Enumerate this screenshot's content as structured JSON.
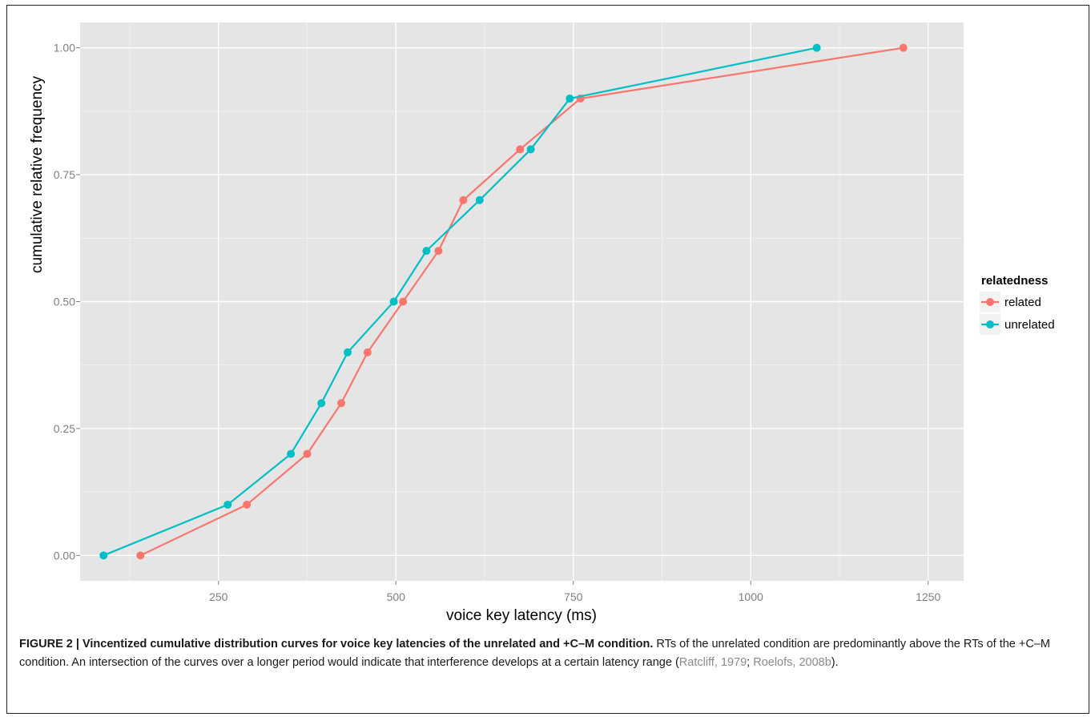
{
  "chart_data": {
    "type": "line",
    "xlabel": "voice key latency (ms)",
    "ylabel": "cumulative relative frequency",
    "xlim": [
      55,
      1300
    ],
    "ylim": [
      -0.05,
      1.05
    ],
    "x_ticks": [
      250,
      500,
      750,
      1000,
      1250
    ],
    "x_tick_labels": [
      "250",
      "500",
      "750",
      "1000",
      "1250"
    ],
    "y_ticks": [
      0,
      0.25,
      0.5,
      0.75,
      1.0
    ],
    "y_tick_labels": [
      "0.00",
      "0.25",
      "0.50",
      "0.75",
      "1.00"
    ],
    "grid": true,
    "legend_position": "right",
    "legend_title": "relatedness",
    "series": [
      {
        "name": "related",
        "color": "#F8766D",
        "points": [
          {
            "x": 140,
            "y": 0.0
          },
          {
            "x": 290,
            "y": 0.1
          },
          {
            "x": 375,
            "y": 0.2
          },
          {
            "x": 423,
            "y": 0.3
          },
          {
            "x": 460,
            "y": 0.4
          },
          {
            "x": 510,
            "y": 0.5
          },
          {
            "x": 560,
            "y": 0.6
          },
          {
            "x": 595,
            "y": 0.7
          },
          {
            "x": 675,
            "y": 0.8
          },
          {
            "x": 760,
            "y": 0.9
          },
          {
            "x": 1215,
            "y": 1.0
          }
        ]
      },
      {
        "name": "unrelated",
        "color": "#00BFC4",
        "points": [
          {
            "x": 88,
            "y": 0.0
          },
          {
            "x": 263,
            "y": 0.1
          },
          {
            "x": 352,
            "y": 0.2
          },
          {
            "x": 395,
            "y": 0.3
          },
          {
            "x": 432,
            "y": 0.4
          },
          {
            "x": 497,
            "y": 0.5
          },
          {
            "x": 543,
            "y": 0.6
          },
          {
            "x": 618,
            "y": 0.7
          },
          {
            "x": 690,
            "y": 0.8
          },
          {
            "x": 745,
            "y": 0.9
          },
          {
            "x": 1093,
            "y": 1.0
          }
        ]
      }
    ]
  },
  "caption": {
    "label": "FIGURE 2 | Vincentized cumulative distribution curves for voice key latencies of the unrelated and +C–M condition.",
    "text_1": " RTs of the unrelated condition are predominantly above the RTs of the +C–M condition. An intersection of the curves over a longer period would indicate that interference develops at a certain latency range (",
    "cite_1": "Ratcliff, 1979",
    "sep": "; ",
    "cite_2": "Roelofs, 2008b",
    "text_2": ")."
  },
  "colors": {
    "panel_background": "#E5E5E5",
    "grid_major": "#FFFFFF",
    "tick_label": "#7F7F7F"
  }
}
